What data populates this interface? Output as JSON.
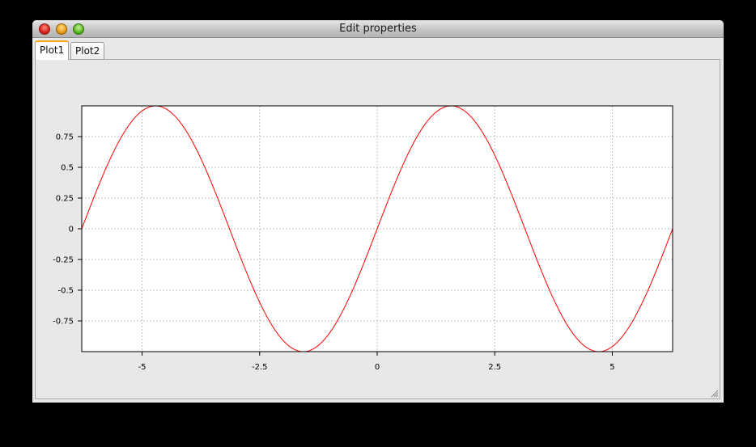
{
  "window": {
    "title": "Edit properties"
  },
  "tabs": [
    {
      "label": "Plot1",
      "active": true
    },
    {
      "label": "Plot2",
      "active": false
    }
  ],
  "colors": {
    "curve": "#ff0000",
    "tab_accent": "#f3a60f",
    "grid": "#c0c0c0"
  },
  "chart_data": {
    "type": "line",
    "function": "sin(x)",
    "title": "",
    "xlabel": "",
    "ylabel": "",
    "xlim": [
      -6.283,
      6.283
    ],
    "ylim": [
      -1,
      1
    ],
    "xticks": [
      -5,
      -2.5,
      0,
      2.5,
      5
    ],
    "xtick_labels": [
      "-5",
      "-2.5",
      "0",
      "2.5",
      "5"
    ],
    "yticks": [
      0.75,
      0.5,
      0.25,
      0,
      -0.25,
      -0.5,
      -0.75
    ],
    "ytick_labels": [
      "0.75",
      "0.5",
      "0.25",
      "0",
      "-0.25",
      "-0.5",
      "-0.75"
    ],
    "grid": true,
    "series": [
      {
        "color": "#ff0000",
        "x": [
          -6.283,
          -5.498,
          -4.712,
          -3.927,
          -3.142,
          -2.356,
          -1.571,
          -0.785,
          0,
          0.785,
          1.571,
          2.356,
          3.142,
          3.927,
          4.712,
          5.498,
          6.283
        ],
        "y": [
          0,
          0.707,
          1,
          0.707,
          0,
          -0.707,
          -1,
          -0.707,
          0,
          0.707,
          1,
          0.707,
          0,
          -0.707,
          -1,
          -0.707,
          0
        ]
      }
    ]
  }
}
